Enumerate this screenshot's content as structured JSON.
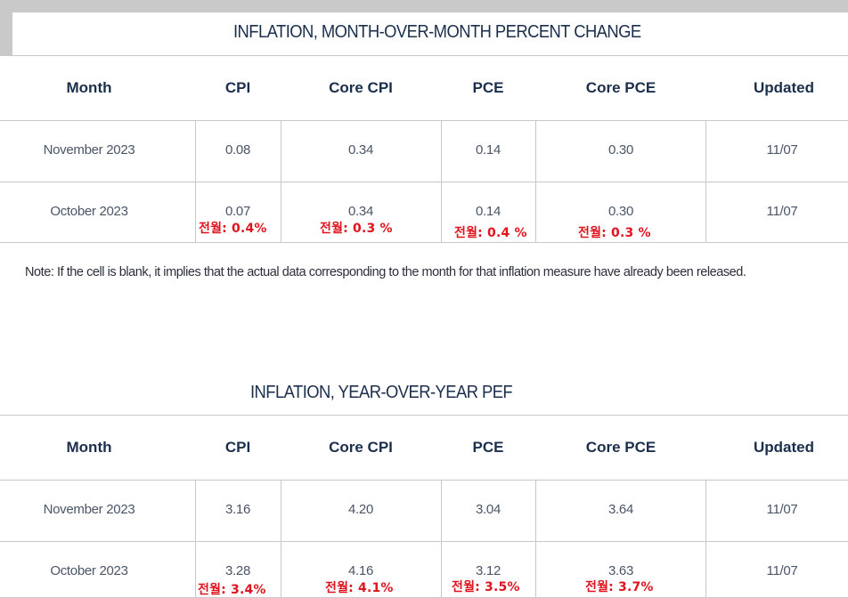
{
  "mom": {
    "title": "INFLATION, MONTH-OVER-MONTH PERCENT CHANGE",
    "headers": [
      "Month",
      "CPI",
      "Core CPI",
      "PCE",
      "Core PCE",
      "Updated"
    ],
    "rows": [
      [
        "November 2023",
        "0.08",
        "0.34",
        "0.14",
        "0.30",
        "11/07"
      ],
      [
        "October 2023",
        "0.07",
        "0.34",
        "0.14",
        "0.30",
        "11/07"
      ]
    ],
    "annotations": [
      "전월: 0.4%",
      "전월: 0.3 %",
      "전월: 0.4 %",
      "전월: 0.3 %"
    ]
  },
  "note": "Note: If the cell is blank, it implies that the actual data corresponding to the month for that inflation measure have already been released.",
  "yoy": {
    "title": "INFLATION, YEAR-OVER-YEAR PEF",
    "headers": [
      "Month",
      "CPI",
      "Core CPI",
      "PCE",
      "Core PCE",
      "Updated"
    ],
    "rows": [
      [
        "November 2023",
        "3.16",
        "4.20",
        "3.04",
        "3.64",
        "11/07"
      ],
      [
        "October 2023",
        "3.28",
        "4.16",
        "3.12",
        "3.63",
        "11/07"
      ]
    ],
    "annotations": [
      "전월: 3.4%",
      "전월: 4.1%",
      "전월: 3.5%",
      "전월: 3.7%"
    ]
  },
  "colors": {
    "heading": "#1b2f4c",
    "cell_text": "#4a5568",
    "annotation": "#e0141e",
    "grid": "#c8c8c8",
    "frame": "#c9c9c9"
  }
}
